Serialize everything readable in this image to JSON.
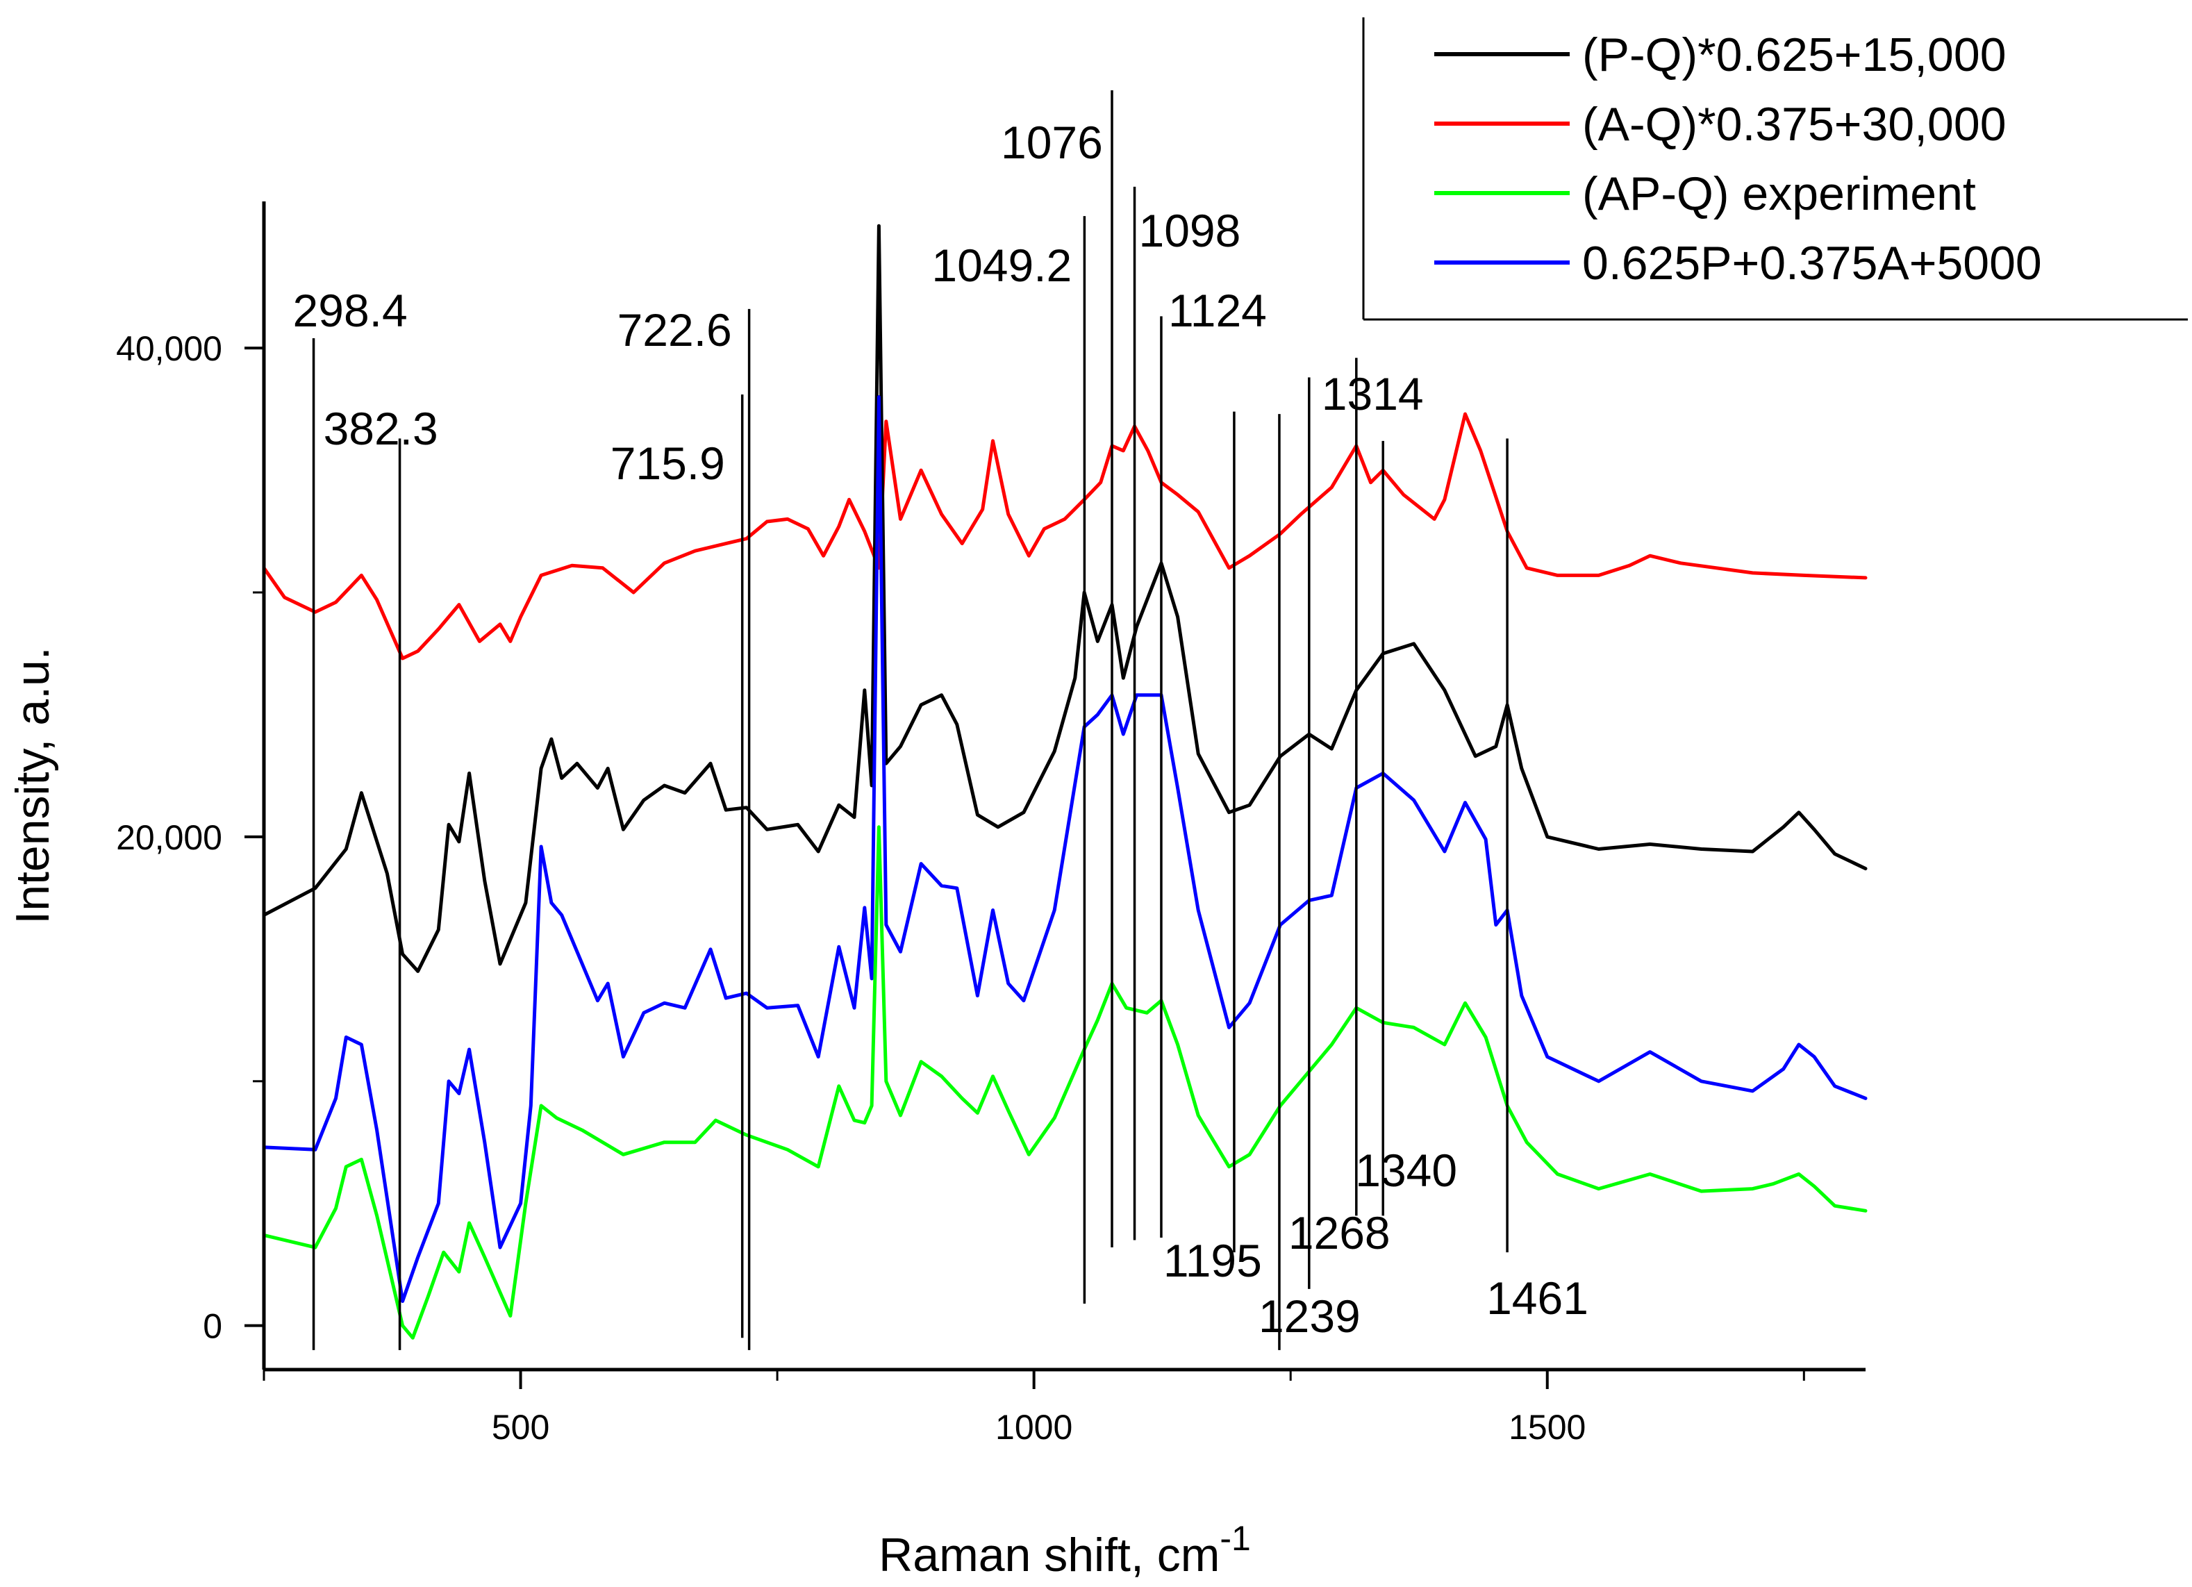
{
  "chart_data": {
    "type": "line",
    "title": "",
    "xlabel": "Raman shift, cm",
    "xlabel_superscript": "-1",
    "ylabel": "Intensity, a.u.",
    "xlim": [
      250,
      1810
    ],
    "ylim": [
      -1800,
      46000
    ],
    "x_ticks": [
      500,
      1000,
      1500
    ],
    "x_tick_labels": [
      "500",
      "1000",
      "1500"
    ],
    "y_ticks": [
      0,
      20000,
      40000
    ],
    "y_tick_labels": [
      "0",
      "20,000",
      "40,000"
    ],
    "grid": false,
    "legend_position": "top-right",
    "series": [
      {
        "name": "(P-Q)*0.625+15,000",
        "color": "#000000",
        "x": [
          250,
          300,
          330,
          345,
          370,
          385,
          400,
          420,
          430,
          440,
          450,
          465,
          480,
          505,
          520,
          530,
          540,
          555,
          575,
          585,
          600,
          620,
          640,
          660,
          685,
          700,
          720,
          740,
          770,
          790,
          810,
          825,
          835,
          842,
          849,
          856,
          870,
          890,
          910,
          925,
          945,
          965,
          990,
          1020,
          1040,
          1049,
          1062,
          1076,
          1087,
          1100,
          1124,
          1140,
          1160,
          1190,
          1210,
          1240,
          1268,
          1290,
          1314,
          1340,
          1370,
          1400,
          1430,
          1450,
          1461,
          1475,
          1500,
          1550,
          1600,
          1650,
          1700,
          1730,
          1745,
          1760,
          1780,
          1810
        ],
        "values": [
          16800,
          17900,
          19500,
          21800,
          18500,
          15200,
          14500,
          16200,
          20500,
          19800,
          22600,
          18200,
          14800,
          17300,
          22800,
          24000,
          22400,
          23000,
          22000,
          22800,
          20300,
          21500,
          22100,
          21800,
          23000,
          21100,
          21200,
          20300,
          20500,
          19400,
          21300,
          20800,
          26000,
          22100,
          45000,
          23000,
          23700,
          25400,
          25800,
          24600,
          20900,
          20400,
          21000,
          23500,
          26500,
          30000,
          28000,
          29500,
          26500,
          28600,
          31200,
          29000,
          23400,
          21000,
          21300,
          23300,
          24200,
          23600,
          26000,
          27500,
          27900,
          26000,
          23300,
          23700,
          25400,
          22800,
          20000,
          19500,
          19700,
          19500,
          19400,
          20400,
          21000,
          20300,
          19300,
          18700
        ]
      },
      {
        "name": "(A-Q)*0.375+30,000",
        "color": "#ff0000",
        "x": [
          250,
          270,
          300,
          320,
          345,
          360,
          385,
          400,
          420,
          440,
          460,
          480,
          490,
          500,
          520,
          550,
          580,
          610,
          640,
          670,
          700,
          720,
          740,
          760,
          780,
          795,
          810,
          820,
          835,
          849,
          856,
          870,
          890,
          910,
          930,
          950,
          960,
          975,
          995,
          1010,
          1030,
          1049,
          1065,
          1076,
          1087,
          1098,
          1111,
          1124,
          1140,
          1160,
          1190,
          1210,
          1240,
          1260,
          1290,
          1314,
          1328,
          1340,
          1360,
          1390,
          1400,
          1420,
          1435,
          1461,
          1480,
          1510,
          1550,
          1580,
          1600,
          1630,
          1700,
          1750,
          1810
        ],
        "values": [
          31000,
          29800,
          29200,
          29600,
          30700,
          29700,
          27300,
          27600,
          28500,
          29500,
          28000,
          28700,
          28000,
          29000,
          30700,
          31100,
          31000,
          30000,
          31200,
          31700,
          32000,
          32200,
          32900,
          33000,
          32600,
          31500,
          32700,
          33800,
          32500,
          31000,
          37000,
          33000,
          35000,
          33200,
          32000,
          33400,
          36200,
          33200,
          31500,
          32600,
          33000,
          33800,
          34500,
          36000,
          35800,
          36800,
          35800,
          34500,
          34000,
          33300,
          31000,
          31500,
          32400,
          33200,
          34300,
          36000,
          34500,
          35000,
          34000,
          33000,
          33800,
          37300,
          35800,
          32500,
          31000,
          30700,
          30700,
          31100,
          31500,
          31200,
          30800,
          30700,
          30600
        ]
      },
      {
        "name": "(AP-Q) experiment",
        "color": "#00ff00",
        "x": [
          250,
          300,
          320,
          330,
          345,
          360,
          385,
          395,
          410,
          425,
          440,
          450,
          465,
          490,
          505,
          520,
          535,
          560,
          600,
          640,
          670,
          690,
          720,
          760,
          790,
          810,
          825,
          835,
          842,
          849,
          856,
          870,
          890,
          910,
          930,
          945,
          960,
          975,
          995,
          1020,
          1049,
          1062,
          1076,
          1090,
          1110,
          1124,
          1140,
          1160,
          1190,
          1210,
          1240,
          1268,
          1290,
          1314,
          1340,
          1370,
          1400,
          1420,
          1440,
          1461,
          1480,
          1510,
          1550,
          1600,
          1650,
          1700,
          1720,
          1745,
          1760,
          1780,
          1810
        ],
        "values": [
          3700,
          3200,
          4800,
          6500,
          6800,
          4500,
          0,
          -500,
          1200,
          3000,
          2200,
          4200,
          2800,
          400,
          5000,
          9000,
          8500,
          8000,
          7000,
          7500,
          7500,
          8400,
          7800,
          7200,
          6500,
          9800,
          8400,
          8300,
          9000,
          20400,
          10000,
          8600,
          10800,
          10200,
          9300,
          8700,
          10200,
          8800,
          7000,
          8500,
          11300,
          12500,
          14000,
          13000,
          12800,
          13300,
          11500,
          8600,
          6500,
          7000,
          9000,
          10400,
          11500,
          13000,
          12400,
          12200,
          11500,
          13200,
          11800,
          9000,
          7500,
          6200,
          5600,
          6200,
          5500,
          5600,
          5800,
          6200,
          5700,
          4900,
          4700
        ]
      },
      {
        "name": "0.625P+0.375A+5000",
        "color": "#0000ff",
        "x": [
          250,
          300,
          320,
          330,
          345,
          360,
          385,
          400,
          420,
          430,
          440,
          450,
          465,
          480,
          500,
          510,
          520,
          530,
          540,
          555,
          575,
          585,
          600,
          620,
          640,
          660,
          685,
          700,
          720,
          740,
          770,
          790,
          810,
          825,
          835,
          842,
          849,
          856,
          870,
          890,
          910,
          925,
          945,
          960,
          975,
          990,
          1020,
          1049,
          1062,
          1076,
          1087,
          1100,
          1124,
          1140,
          1160,
          1190,
          1210,
          1240,
          1268,
          1290,
          1314,
          1340,
          1370,
          1400,
          1420,
          1440,
          1450,
          1461,
          1475,
          1500,
          1550,
          1600,
          1650,
          1700,
          1730,
          1745,
          1760,
          1780,
          1810
        ],
        "values": [
          7300,
          7200,
          9300,
          11800,
          11500,
          8000,
          1000,
          2800,
          5000,
          10000,
          9500,
          11300,
          7500,
          3200,
          5000,
          9000,
          19600,
          17300,
          16800,
          15300,
          13300,
          14000,
          11000,
          12800,
          13200,
          13000,
          15400,
          13400,
          13600,
          13000,
          13100,
          11000,
          15500,
          13000,
          17100,
          14200,
          38000,
          16400,
          15300,
          18900,
          18000,
          17900,
          13500,
          17000,
          14000,
          13300,
          17000,
          24500,
          25000,
          25800,
          24200,
          25800,
          25800,
          22000,
          17000,
          12200,
          13200,
          16400,
          17400,
          17600,
          22000,
          22600,
          21500,
          19400,
          21400,
          19900,
          16400,
          17000,
          13500,
          11000,
          10000,
          11200,
          10000,
          9600,
          10500,
          11500,
          11000,
          9800,
          9300
        ]
      }
    ],
    "annotations": [
      {
        "label": "298.4",
        "x": 298.4,
        "line_y": [
          -1000,
          40400
        ]
      },
      {
        "label": "382.3",
        "x": 382.3,
        "line_y": [
          -1000,
          36300
        ]
      },
      {
        "label": "715.9",
        "x": 715.9,
        "line_y": [
          -500,
          38100
        ]
      },
      {
        "label": "722.6",
        "x": 722.6,
        "line_y": [
          -1000,
          41600
        ]
      },
      {
        "label": "1049.2",
        "x": 1049.2,
        "line_y": [
          900,
          45400
        ]
      },
      {
        "label": "1076",
        "x": 1076,
        "line_y": [
          3200,
          50800
        ]
      },
      {
        "label": "1098",
        "x": 1098,
        "line_y": [
          3500,
          46600
        ]
      },
      {
        "label": "1124",
        "x": 1124,
        "line_y": [
          3600,
          41300
        ]
      },
      {
        "label": "1195",
        "x": 1195,
        "line_y": [
          3000,
          37400
        ]
      },
      {
        "label": "1239",
        "x": 1239,
        "line_y": [
          -1000,
          37300
        ]
      },
      {
        "label": "1268",
        "x": 1268,
        "line_y": [
          1500,
          38800
        ]
      },
      {
        "label": "1314",
        "x": 1314,
        "line_y": [
          4500,
          39600
        ]
      },
      {
        "label": "1340",
        "x": 1340,
        "line_y": [
          4500,
          36200
        ]
      },
      {
        "label": "1461",
        "x": 1461,
        "line_y": [
          3000,
          36300
        ]
      }
    ]
  }
}
